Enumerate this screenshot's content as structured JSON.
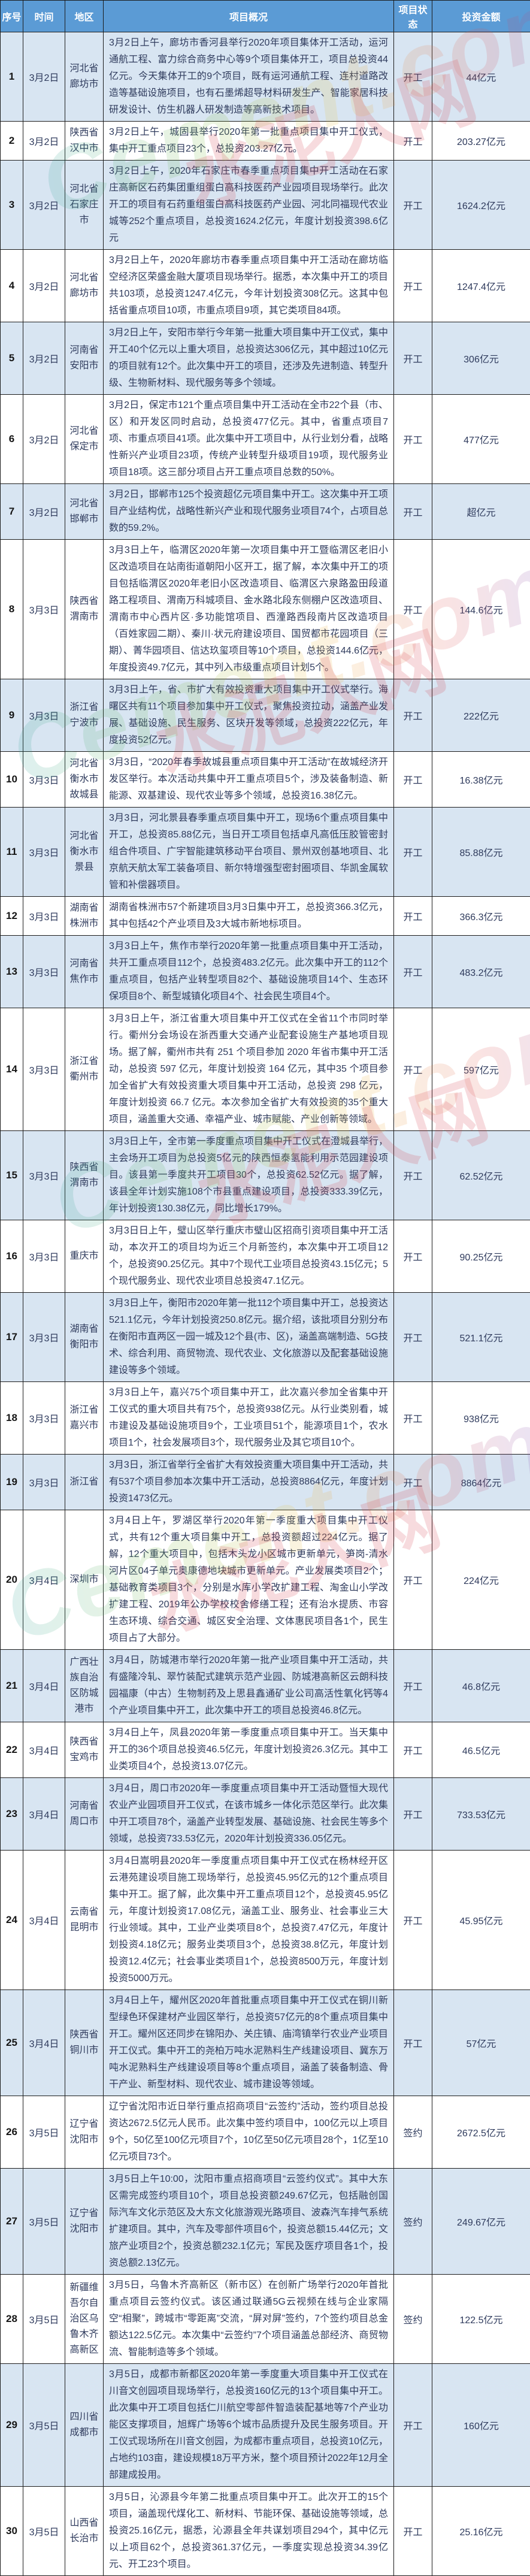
{
  "watermark": {
    "en": "Cement.com",
    "cn": "水泥人网"
  },
  "colors": {
    "header_bg": "#5b9bd5",
    "header_text": "#ffffff",
    "row_shaded_bg": "#d8e5f2",
    "body_text": "#2e3a5c",
    "border": "#1c1c1c",
    "watermark_red": "#d5404e"
  },
  "table": {
    "headers": [
      "序号",
      "时间",
      "地区",
      "项目概况",
      "项目状态",
      "投资金额"
    ],
    "rows": [
      {
        "no": 1,
        "date": "3月2日",
        "region": "河北省廊坊市",
        "summary": "3月2日上午，廊坊市香河县举行2020年项目集体开工活动，运河通航工程、富力综合商务中心等9个项目集体开工，项目总投资44亿元。今天集体开工的9个项目，既有运河通航工程、连村道路改造等基础设施项目，也有石墨烯超导材料研发生产、智能家居科技研发设计、仿生机器人研发制造等高新技术项目。",
        "status": "开工",
        "amount": "44亿元"
      },
      {
        "no": 2,
        "date": "3月2日",
        "region": "陕西省汉中市",
        "summary": "3月2日上午，城固县举行2020年第一批重点项目集中开工仪式，集中开工重点项目23个，总投资203.27亿元。",
        "status": "开工",
        "amount": "203.27亿元"
      },
      {
        "no": 3,
        "date": "3月2日",
        "region": "河北省石家庄市",
        "summary": "3月2日上午，2020年石家庄市春季重点项目集中开工活动在石家庄高新区石药集团重组蛋白高科技医药产业园项目现场举行。此次开工的项目有石药重组蛋白高科技医药产业园、河北同福现代农业城等252个重点项目，总投资1624.2亿元，年度计划投资398.6亿元",
        "status": "开工",
        "amount": "1624.2亿元"
      },
      {
        "no": 4,
        "date": "3月2日",
        "region": "河北省廊坊市",
        "summary": "3月2日上午，2020年廊坊市春季重点项目集中开工活动在廊坊临空经济区荣盛金融大厦项目现场举行。据悉，本次集中开工的项目共103项，总投资1247.4亿元，今年计划投资308亿元。这其中包括省重点项目10项，市重点项目9项，其它类项目84项。",
        "status": "开工",
        "amount": "1247.4亿元"
      },
      {
        "no": 5,
        "date": "3月2日",
        "region": "河南省安阳市",
        "summary": "3月2日上午，安阳市举行今年第一批重大项目集中开工仪式，集中开工40个亿元以上重大项目，总投资达306亿元，其中超过10亿元的项目就有12个。此次集中开工的项目，还涉及先进制造、转型升级、生物新材料、现代服务等多个领域。",
        "status": "开工",
        "amount": "306亿元"
      },
      {
        "no": 6,
        "date": "3月2日",
        "region": "河北省保定市",
        "summary": "3月2日，保定市121个重点项目集中开工活动在全市22个县（市、区）和开发区同时启动，总投资477亿元。其中，省重点项目7项、市重点项目41项。此次集中开工项目中，从行业划分看，战略性新兴产业项目23项，传统产业转型升级项目19项，现代服务业项目18项。这三部分项目占开工重点项目总数的50%。",
        "status": "开工",
        "amount": "477亿元"
      },
      {
        "no": 7,
        "date": "3月2日",
        "region": "河北省邯郸市",
        "summary": "3月2日，邯郸市125个投资超亿元项目集中开工。这次集中开工项目产业结构优，战略性新兴产业和现代服务业项目74个，占项目总数的59.2%。",
        "status": "开工",
        "amount": "超亿元"
      },
      {
        "no": 8,
        "date": "3月3日",
        "region": "陕西省渭南市",
        "summary": "3月3日上午，临渭区2020年第一次项目集中开工暨临渭区老旧小区改造项目在站南街道朝阳小区开工，据了解，本次集中开工的项目包括临渭区2020年老旧小区改造项目、临渭区六泉路盈田段道路工程项目、渭南万科城项目、金水路北段东侧棚户区改造项目、渭南市中心西片区·多功能馆项目、西潼路西段南片区改造项目（百姓家园二期）、秦川·状元府建设项目、国贸都市花园项目（三期）、菁华园项目、信达玖玺项目等10个项目，总投资144.6亿元，年度投资49.7亿元，其中列入市级重点项目计划5个。",
        "status": "开工",
        "amount": "144.6亿元"
      },
      {
        "no": 9,
        "date": "3月3日",
        "region": "浙江省宁波市",
        "summary": "3月3日上午，省、市扩大有效投资重大项目集中开工仪式举行。海曙区共有11个项目参加集中开工仪式，聚焦投资拉动，涵盖产业发展、基础设施、民生服务、区块开发等领域，总投资222亿元，年度投资52亿元。",
        "status": "开工",
        "amount": "222亿元"
      },
      {
        "no": 10,
        "date": "3月3日",
        "region": "河北省衡水市故城县",
        "summary": "3月3日，“2020年春季故城县重点项目集中开工活动”在故城经济开发区举行。本次活动共集中开工重点项目5个，涉及装备制造、新能源、双基建设、现代农业等多个领域，总投资16.38亿元。",
        "status": "开工",
        "amount": "16.38亿元"
      },
      {
        "no": 11,
        "date": "3月3日",
        "region": "河北省衡水市景县",
        "summary": "3月3日，河北景县春季重点项目集中开工，现场6个重点项目集中开工，总投资85.88亿元，当日开工项目包括卓凡高低压胶管密封组合件项目、广宇智能建筑移动平台项目、景州双创基地项目、北京航天航太军工装备项目、新尔特增强型密封圈项目、华凯金属软管和补偿器项目。",
        "status": "开工",
        "amount": "85.88亿元"
      },
      {
        "no": 12,
        "date": "3月3日",
        "region": "湖南省株洲市",
        "summary": "湖南省株洲市57个新建项目3月3日集中开工，总投资366.3亿元，其中包括42个产业项目及3大城市新地标项目。",
        "status": "开工",
        "amount": "366.3亿元"
      },
      {
        "no": 13,
        "date": "3月3日",
        "region": "河南省焦作市",
        "summary": "3月3日上午，焦作市举行2020年第一批重点项目集中开工活动，共开工重点项目112个，总投资483.2亿元。此次集中开工的112个重点项目，包括产业转型项目82个、基础设施项目14个、生态环保项目8个、新型城镇化项目4个、社会民生项目4个。",
        "status": "开工",
        "amount": "483.2亿元"
      },
      {
        "no": 14,
        "date": "3月3日",
        "region": "浙江省衢州市",
        "summary": "3月3日上午，浙江省重大项目集中开工仪式在全省11个市同时举行。衢州分会场设在浙西重大交通产业配套设施生产基地项目现场。据了解，衢州市共有 251 个项目参加 2020 年省市集中开工活动，总投资 597 亿元，年度计划投资 164 亿元，其中35 个项目参加全省扩大有效投资重大项目集中开工活动，总投资 298 亿元，年度计划投资 66.7 亿元。本次参加全省扩大有效投资的35个重大项目，涵盖重大交通、幸福产业、城市赋能、产业创新等领域。",
        "status": "开工",
        "amount": "597亿元"
      },
      {
        "no": 15,
        "date": "3月3日",
        "region": "陕西省渭南市",
        "summary": "3月3日上午，全市第一季度重点项目集中开工仪式在澄城县举行，主会场开工项目为总投资5亿元的陕西恒泰氢能利用示范园建设项目。该县第一季度共开工项目30个，总投资62.52亿元。据了解，该县全年计划实施108个市县重点建设项目，总投资333.39亿元，年计划投资130.38亿元，同比增长179%。",
        "status": "开工",
        "amount": "62.52亿元"
      },
      {
        "no": 16,
        "date": "3月3日",
        "region": "重庆市",
        "summary": "3月3日日上午，璧山区举行重庆市璧山区招商引资项目集中开工活动，本次开工的项目均为近三个月新签约，本次集中开工项目12个，总投资90.25亿元。其中7个现代工业项目总投资43.15亿元；5个现代服务业、现代农业项目总投资47.1亿元。",
        "status": "开工",
        "amount": "90.25亿元"
      },
      {
        "no": 17,
        "date": "3月3日",
        "region": "湖南省衡阳市",
        "summary": "3月3日上午，衡阳市2020年第一批112个项目集中开工，总投资达521.1亿元，今年计划投资250.8亿元。据介绍，该批项目分别分布在衡阳市直两区一园一城及12个县(市、区)，涵盖高端制造、5G技术、综合利用、商贸物流、现代农业、文化旅游以及配套基础设施建设等多个领域。",
        "status": "开工",
        "amount": "521.1亿元"
      },
      {
        "no": 18,
        "date": "3月3日",
        "region": "浙江省嘉兴市",
        "summary": "3月3日上午，嘉兴75个项目集中开工，此次嘉兴参加全省集中开工仪式的重大项目共有75个，总投资938亿元。从行业类别看，城市建设及基础设施项目9个，工业项目51个，能源项目1个，农水项目1个，社会发展项目3个，现代服务业及其它项目10个。",
        "status": "开工",
        "amount": "938亿元"
      },
      {
        "no": 19,
        "date": "3月3日",
        "region": "浙江省",
        "summary": "3月3日，浙江省举行全省扩大有效投资重大项目集中开工活动，共有537个项目参加本次集中开工活动，总投资8864亿元，年度计划投资1473亿元。",
        "status": "开工",
        "amount": "8864亿元"
      },
      {
        "no": 20,
        "date": "3月4日",
        "region": "深圳市",
        "summary": "3月4日上午，罗湖区举行2020年第一季度重大项目集中开工仪式，共有12个重大项目集中开工，总投资额超过224亿元。据了解，12个重大项目中，包括木头龙小区城市更新单元，笋岗-清水河片区04子单元奥康德地块城市更新单元。产业发展类项目2个；基础教育类项目3个，分别是水库小学改扩建工程、淘金山小学改扩建工程、2019年公办学校校舍修缮工程；还有治水提质、市容生态环境、综合交通、城区安全治理、文体惠民项目各1个，民生项目占了大部分。",
        "status": "开工",
        "amount": "224亿元"
      },
      {
        "no": 21,
        "date": "3月4日",
        "region": "广西壮族自治区防城港市",
        "summary": "3月4日，防城港市举行2020年第一批产业项目集中开工活动，共有盛隆冷轧、翠竹装配式建筑示范产业园、防城港高新区云朗科技园福康（中古）生物制药及上思县鑫通矿业公司高活性氧化钙等4个产业项目集中开工，此次集中开工的项目总投资46.8亿元。",
        "status": "开工",
        "amount": "46.8亿元"
      },
      {
        "no": 22,
        "date": "3月4日",
        "region": "陕西省宝鸡市",
        "summary": "3月4日上午，凤县2020年第一季度重点项目集中开工。当天集中开工的36个项目总投资46.5亿元，年度计划投资26.3亿元。其中工业类项目4个，总投资13.07亿元。",
        "status": "开工",
        "amount": "46.5亿元"
      },
      {
        "no": 23,
        "date": "3月4日",
        "region": "河南省周口市",
        "summary": "3月4日，周口市2020年一季度重点项目集中开工活动暨恒大现代农业产业园项目开工仪式，在该市城乡一体化示范区举行。此次集中开工项目78个，涵盖产业转型发展、基础设施、社会民生等多个领域，总投资733.53亿元，2020年计划投资336.05亿元。",
        "status": "开工",
        "amount": "733.53亿元"
      },
      {
        "no": 24,
        "date": "3月4日",
        "region": "云南省昆明市",
        "summary": "3月4日嵩明县2020年一季度重点项目集中开工仪式在杨林经开区云港苑建设项目施工现场举行，总投资45.95亿元的12个重点项目集中开工。据了解，此次集中开工重点项目12个，总投资45.95亿元，年度计划投资17.08亿元，涵盖工业、服务业、社会事业三大行业领域。其中，工业产业类项目8个，总投资7.47亿元，年度计划投资4.18亿元；服务业类项目3个，总投资38.8亿元，年度计划投资12.4亿元；社会事业类项目1个，总投资8500万元，年度计划投资5000万元。",
        "status": "开工",
        "amount": "45.95亿元"
      },
      {
        "no": 25,
        "date": "3月4日",
        "region": "陕西省铜川市",
        "summary": "3月4日上午，耀州区2020年首批重点项目集中开工仪式在铜川新型绿色环保建材产业园区举行，总投资57亿元的8个重点项目集中开工。耀州区还同步在锦阳办、关庄镇、庙湾镇举行农业产业项目开工仪式。集中开工的尧柏万吨水泥熟料生产线建设项目、冀东万吨水泥熟料生产线建设项目等8个重点项目，涵盖了装备制造、骨干产业、新型材料、现代农业、城市建设等领域。",
        "status": "开工",
        "amount": "57亿元"
      },
      {
        "no": 26,
        "date": "3月5日",
        "region": "辽宁省沈阳市",
        "summary": "辽宁省沈阳市近日举行重点招商项目“云签约”活动，签约项目总投资达2672.5亿元人民币。此次集中签约项目中，100亿元以上项目9个，50亿至100亿元项目7个，10亿至50亿元项目28个，1亿至10亿元项目73个。",
        "status": "签约",
        "amount": "2672.5亿元"
      },
      {
        "no": 27,
        "date": "3月5日",
        "region": "辽宁省沈阳市",
        "summary": "3月5日上午10:00，沈阳市重点招商项目“云签约仪式”。其中大东区需完成签约项目10个，项目总投资额249.67亿元，包括融创国际汽车文化示范区及大东文化旅游观光路项目、波森汽车排气系统扩建项目。其中，汽车及零部件项目6个，投资总额15.44亿元；文旅产业项目2个，投资总额232.1亿元；军民及医疗项目各1个，投资总额2.13亿元。",
        "status": "签约",
        "amount": "249.67亿元"
      },
      {
        "no": 28,
        "date": "3月5日",
        "region": "新疆维吾尔自治区乌鲁木齐高新区",
        "summary": "3月5日，乌鲁木齐高新区（新市区）在创新广场举行2020年首批重点项目云签约仪式。该区通过联通5G云视频在线与企业家隔空“相聚”，跨城市“零距离”交流，“屏对屏”签约，7个签约项目总金额达122.5亿元。本次集中“云签约”7个项目涵盖总部经济、商贸物流、智能制造等多个领域。",
        "status": "签约",
        "amount": "122.5亿元"
      },
      {
        "no": 29,
        "date": "3月5日",
        "region": "四川省成都市",
        "summary": "3月5日，成都市新都区2020年第一季度重大项目集中开工仪式在川音文创园项目现场举行，总投资160亿元的13个项目集中开工。此次集中开工项目包括仁川航空零部件智造装配基地等7个产业功能区支撑项目，旭辉广场等6个城市品质提升及民生服务项目。开工仪式现场所在川音文创园，为成都市重点项目，总投资10亿元，占地约103亩，建设规模18万平方米，整个项目预计2022年12月全部建成投用。",
        "status": "开工",
        "amount": "160亿元"
      },
      {
        "no": 30,
        "date": "3月5日",
        "region": "山西省长治市",
        "summary": "3月5日，沁源县今年第二批重点项目集中开工。此次开工的15个项目，涵盖现代煤化工、新材料、节能环保、基础设施等领域，总投资25.16亿元，据悉，沁源县全年共谋划项目294个，其中亿元以上项目62个，总投资361.37亿元，一季度实现总投资34.39亿元、开工23个项目。",
        "status": "开工",
        "amount": "25.16亿元"
      }
    ]
  }
}
